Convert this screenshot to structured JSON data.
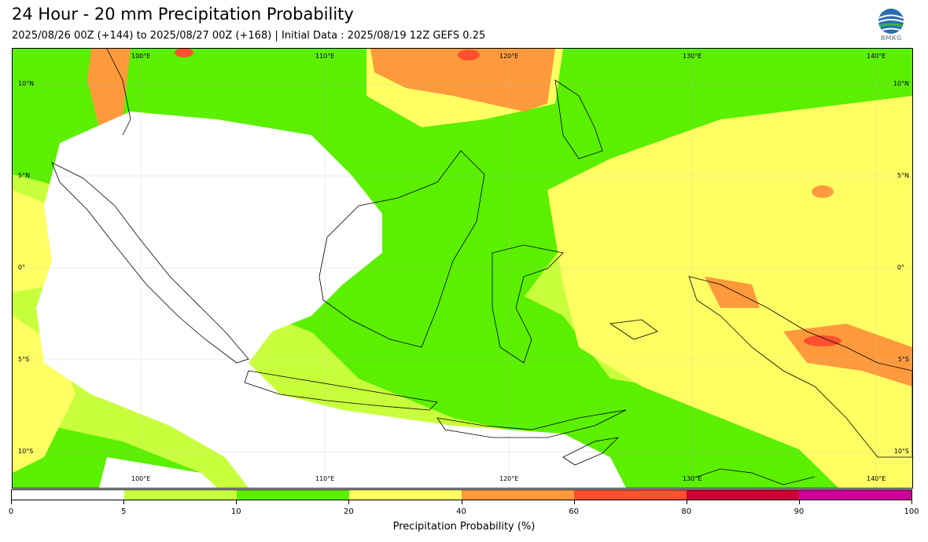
{
  "header": {
    "title": "24 Hour - 20 mm Precipitation Probability",
    "subtitle": "2025/08/26 00Z (+144) to 2025/08/27 00Z (+168) | Initial Data : 2025/08/19 12Z GEFS 0.25",
    "logo_text": "BMKG"
  },
  "map": {
    "lon_labels": [
      "100°E",
      "110°E",
      "120°E",
      "130°E",
      "140°E"
    ],
    "lat_labels": [
      "10°N",
      "5°N",
      "0°",
      "5°S",
      "10°S"
    ],
    "region": "Indonesia / Maritime Continent",
    "dominant_colors": {
      "white": "#ffffff",
      "yellow_green": "#c8ff3c",
      "green": "#5af000",
      "yellow": "#ffff64",
      "orange": "#ff9a3c",
      "red": "#ff5030"
    }
  },
  "colorbar": {
    "title": "Precipitation Probability (%)",
    "ticks": [
      "0",
      "5",
      "10",
      "20",
      "40",
      "60",
      "80",
      "90",
      "100"
    ],
    "colors": [
      "#ffffff",
      "#c8ff3c",
      "#5af000",
      "#ffff64",
      "#ff9a3c",
      "#ff5030",
      "#cc0033",
      "#cc0099"
    ]
  }
}
